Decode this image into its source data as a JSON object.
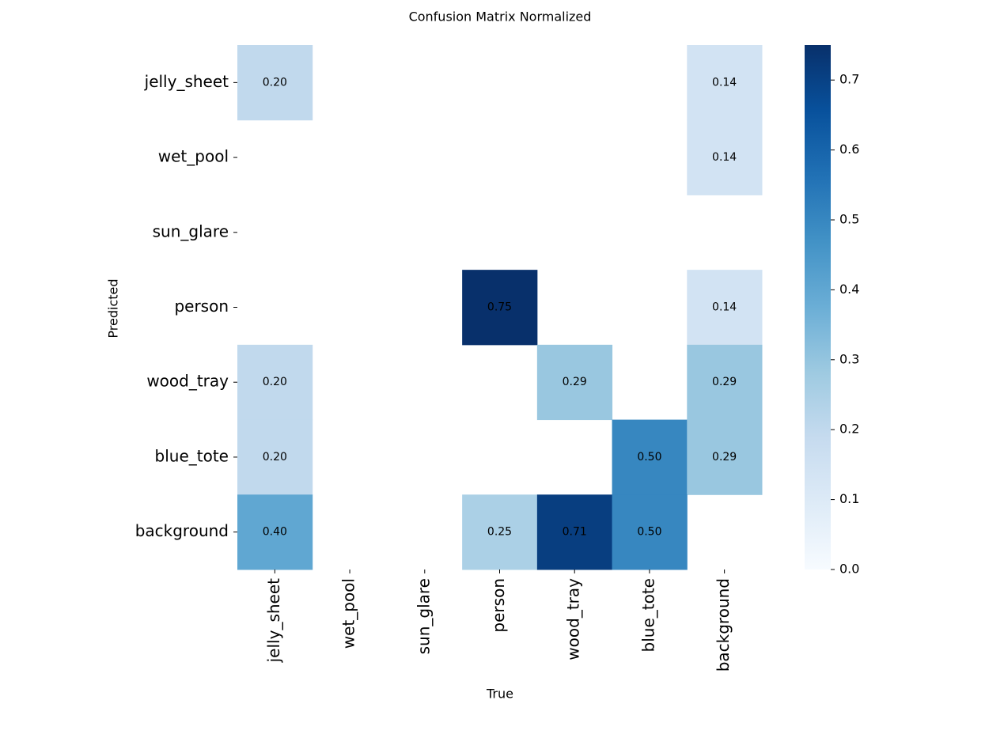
{
  "chart_data": {
    "type": "heatmap",
    "title": "Confusion Matrix Normalized",
    "x_label": "True",
    "y_label": "Predicted",
    "x_categories": [
      "jelly_sheet",
      "wet_pool",
      "sun_glare",
      "person",
      "wood_tray",
      "blue_tote",
      "background"
    ],
    "y_categories": [
      "jelly_sheet",
      "wet_pool",
      "sun_glare",
      "person",
      "wood_tray",
      "blue_tote",
      "background"
    ],
    "values": [
      [
        0.2,
        null,
        null,
        null,
        null,
        null,
        0.14
      ],
      [
        null,
        null,
        null,
        null,
        null,
        null,
        0.14
      ],
      [
        null,
        null,
        null,
        null,
        null,
        null,
        null
      ],
      [
        null,
        null,
        null,
        0.75,
        null,
        null,
        0.14
      ],
      [
        0.2,
        null,
        null,
        null,
        0.29,
        null,
        0.29
      ],
      [
        0.2,
        null,
        null,
        null,
        null,
        0.5,
        0.29
      ],
      [
        0.4,
        null,
        null,
        0.25,
        0.71,
        0.5,
        null
      ]
    ],
    "value_labels": [
      [
        "0.20",
        null,
        null,
        null,
        null,
        null,
        "0.14"
      ],
      [
        null,
        null,
        null,
        null,
        null,
        null,
        "0.14"
      ],
      [
        null,
        null,
        null,
        null,
        null,
        null,
        null
      ],
      [
        null,
        null,
        null,
        "0.75",
        null,
        null,
        "0.14"
      ],
      [
        "0.20",
        null,
        null,
        null,
        "0.29",
        null,
        "0.29"
      ],
      [
        "0.20",
        null,
        null,
        null,
        null,
        "0.50",
        "0.29"
      ],
      [
        "0.40",
        null,
        null,
        "0.25",
        "0.71",
        "0.50",
        null
      ]
    ],
    "colormap": "Blues",
    "clim": [
      0,
      0.75
    ],
    "cticks": [
      {
        "value": 0,
        "label": "0.0"
      },
      0.1,
      0.2,
      0.3,
      0.4,
      0.5,
      0.6,
      0.7
    ]
  }
}
